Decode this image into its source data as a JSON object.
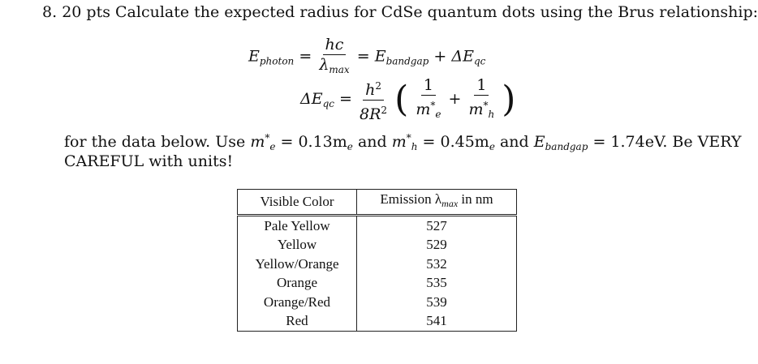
{
  "problem": {
    "number": "8.",
    "points": "20 pts",
    "statement": "Calculate the expected radius for CdSe quantum dots using the Brus relationship:"
  },
  "equation1": {
    "lhs": "E",
    "lhs_sub": "photon",
    "eq1": "=",
    "frac_num": "hc",
    "frac_den": "λ",
    "frac_den_sub": "max",
    "eq2": "=",
    "rhs1": "E",
    "rhs1_sub": "bandgap",
    "plus": "+",
    "rhs2": "ΔE",
    "rhs2_sub": "qc"
  },
  "equation2": {
    "lhs": "ΔE",
    "lhs_sub": "qc",
    "eq": "=",
    "frac_num": "h",
    "frac_num_sup": "2",
    "frac_den": "8R",
    "frac_den_sup": "2",
    "inner1_num": "1",
    "inner1_den": "m",
    "inner1_den_sup": "*",
    "inner1_den_sub": "e",
    "plus": "+",
    "inner2_num": "1",
    "inner2_den": "m",
    "inner2_den_sup": "*",
    "inner2_den_sub": "h"
  },
  "instructions": {
    "part1": "for the data below. Use",
    "me_sym": "m",
    "me_sup": "*",
    "me_sub": "e",
    "me_val": "= 0.13m",
    "me_val_sub": "e",
    "and1": "and",
    "mh_sym": "m",
    "mh_sup": "*",
    "mh_sub": "h",
    "mh_val": "= 0.45m",
    "mh_val_sub": "e",
    "and2": "and",
    "eg_sym": "E",
    "eg_sub": "bandgap",
    "eg_val": "= 1.74eV. Be VERY",
    "line2": "CAREFUL with units!"
  },
  "table": {
    "header_color": "Visible Color",
    "header_emission": "Emission λ",
    "header_emission_sub": "max",
    "header_emission_unit": "in nm",
    "rows": [
      {
        "color": "Pale Yellow",
        "emission": "527"
      },
      {
        "color": "Yellow",
        "emission": "529"
      },
      {
        "color": "Yellow/Orange",
        "emission": "532"
      },
      {
        "color": "Orange",
        "emission": "535"
      },
      {
        "color": "Orange/Red",
        "emission": "539"
      },
      {
        "color": "Red",
        "emission": "541"
      }
    ]
  }
}
